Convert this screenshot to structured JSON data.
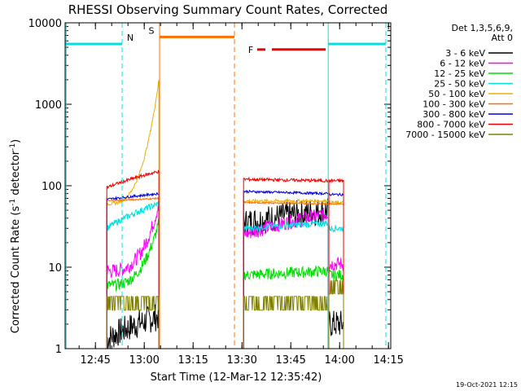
{
  "chart_data": {
    "type": "line",
    "title": "RHESSI Observing Summary Count Rates, Corrected",
    "xlabel": "Start Time (12-Mar-12 12:35:42)",
    "ylabel": "Corrected Count Rate (s⁻¹ detector⁻¹)",
    "ylabel_main": "Corrected Count Rate (s",
    "ylabel_sup1": "-1",
    "ylabel_mid": " detector",
    "ylabel_sup2": "-1",
    "ylabel_end": ")",
    "yscale": "log",
    "xlim_minutes": [
      0,
      100
    ],
    "ylim": [
      1,
      10000
    ],
    "x_ticks": [
      {
        "label": "12:45",
        "minutes": 9.3
      },
      {
        "label": "13:00",
        "minutes": 24.3
      },
      {
        "label": "13:15",
        "minutes": 39.3
      },
      {
        "label": "13:30",
        "minutes": 54.3
      },
      {
        "label": "13:45",
        "minutes": 69.3
      },
      {
        "label": "14:00",
        "minutes": 84.3
      },
      {
        "label": "14:15",
        "minutes": 99.3
      }
    ],
    "y_ticks": [
      {
        "label": "1",
        "value": 1
      },
      {
        "label": "10",
        "value": 10
      },
      {
        "label": "100",
        "value": 100
      },
      {
        "label": "1000",
        "value": 1000
      },
      {
        "label": "10000",
        "value": 10000
      }
    ],
    "legend_header": [
      "Det 1,3,5,6,9,",
      "Att 0"
    ],
    "legend_position": "right",
    "series": [
      {
        "name": "3 - 6 keV",
        "color": "#000000",
        "key": "s0"
      },
      {
        "name": "6 - 12 keV",
        "color": "#ff00ff",
        "key": "s1"
      },
      {
        "name": "12 - 25 keV",
        "color": "#00dd00",
        "key": "s2"
      },
      {
        "name": "25 - 50 keV",
        "color": "#00e0e0",
        "key": "s3"
      },
      {
        "name": "50 - 100 keV",
        "color": "#e8b000",
        "key": "s4"
      },
      {
        "name": "100 - 300 keV",
        "color": "#ff7000",
        "key": "s5"
      },
      {
        "name": "300 - 800 keV",
        "color": "#0000dd",
        "key": "s6"
      },
      {
        "name": "800 - 7000 keV",
        "color": "#ee0000",
        "key": "s7"
      },
      {
        "name": "7000 - 15000 keV",
        "color": "#808000",
        "key": "s8"
      }
    ],
    "segments": [
      {
        "start": 12.8,
        "end": 28.8,
        "levels": {
          "s0": [
            1.3,
            2.5
          ],
          "s1": [
            9,
            60
          ],
          "s2": [
            6,
            35
          ],
          "s3": [
            30,
            60
          ],
          "s4": [
            60,
            2000
          ],
          "s5": [
            65,
            70
          ],
          "s6": [
            68,
            80
          ],
          "s7": [
            95,
            150
          ],
          "s8": [
            3.5,
            3.5
          ]
        }
      },
      {
        "start": 54.8,
        "end": 80.8,
        "levels": {
          "s0": [
            35,
            50
          ],
          "s1": [
            25,
            45
          ],
          "s2": [
            8,
            9
          ],
          "s3": [
            30,
            35
          ],
          "s4": [
            65,
            65
          ],
          "s5": [
            62,
            60
          ],
          "s6": [
            85,
            80
          ],
          "s7": [
            120,
            115
          ],
          "s8": [
            3.5,
            3.5
          ]
        }
      },
      {
        "start": 81.0,
        "end": 85.5,
        "levels": {
          "s0": [
            2,
            2
          ],
          "s1": [
            11,
            11
          ],
          "s2": [
            8,
            8
          ],
          "s3": [
            30,
            30
          ],
          "s4": [
            62,
            62
          ],
          "s5": [
            60,
            60
          ],
          "s6": [
            78,
            78
          ],
          "s7": [
            115,
            115
          ],
          "s8": [
            5.5,
            5.5
          ]
        }
      }
    ],
    "flags": [
      {
        "label": "N",
        "color": "#00e0e0",
        "value": 5500,
        "start": 0,
        "end": 17.5
      },
      {
        "label": "",
        "color": "#00e0e0",
        "value": 5500,
        "start": 80.8,
        "end": 98.5
      },
      {
        "label": "S",
        "color": "#ff7000",
        "value": 6700,
        "start": 29.0,
        "end": 52.0
      },
      {
        "label": "F",
        "color": "#ee0000",
        "value": 4700,
        "start": 56.5,
        "end": 80.0
      }
    ],
    "event_lines": [
      {
        "minutes": 0.3,
        "color": "#00e0e0",
        "style": "solid"
      },
      {
        "minutes": 17.5,
        "color": "#00e0e0",
        "style": "dashed"
      },
      {
        "minutes": 29.0,
        "color": "#ff7000",
        "style": "solid"
      },
      {
        "minutes": 52.0,
        "color": "#ff7000",
        "style": "dashed"
      },
      {
        "minutes": 80.8,
        "color": "#00e0e0",
        "style": "solid"
      },
      {
        "minutes": 98.5,
        "color": "#00e0e0",
        "style": "dashed"
      }
    ],
    "footer_date": "19-Oct-2021 12:15"
  }
}
